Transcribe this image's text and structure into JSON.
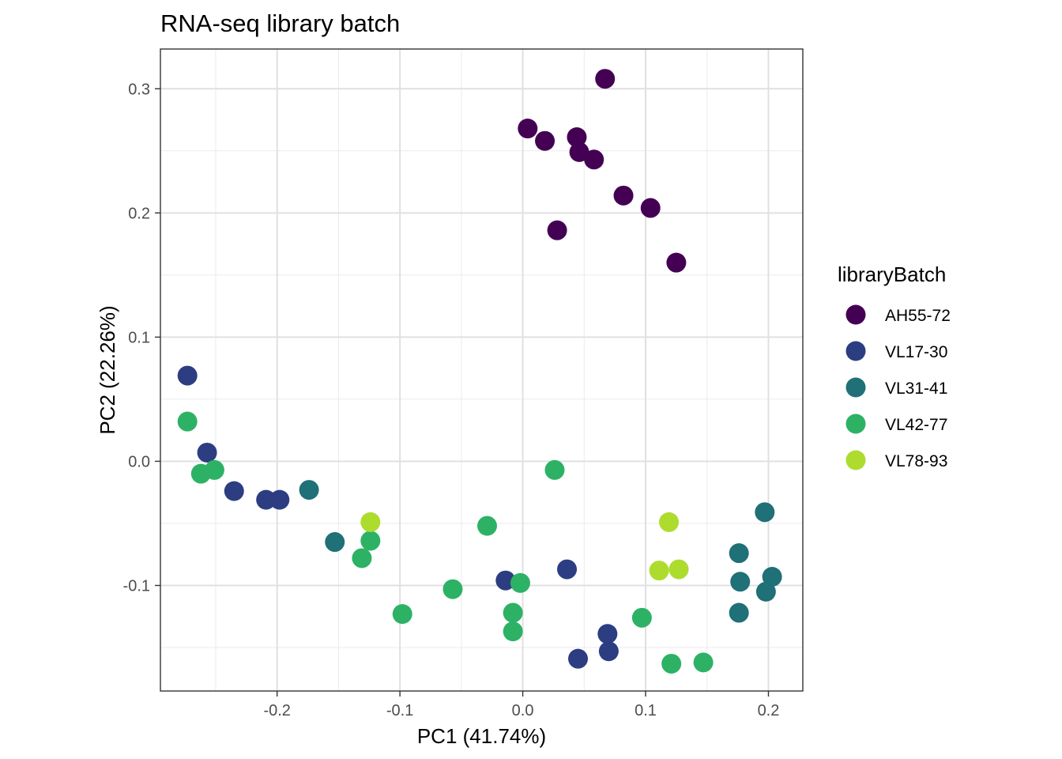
{
  "chart_data": {
    "type": "scatter",
    "title": "RNA-seq library batch",
    "xlabel": "PC1 (41.74%)",
    "ylabel": "PC2 (22.26%)",
    "xlim": [
      -0.295,
      0.228
    ],
    "ylim": [
      -0.185,
      0.332
    ],
    "x_ticks": [
      -0.2,
      -0.1,
      0.0,
      0.1,
      0.2
    ],
    "x_tick_labels": [
      "-0.2",
      "-0.1",
      "0.0",
      "0.1",
      "0.2"
    ],
    "y_ticks": [
      -0.1,
      0.0,
      0.1,
      0.2,
      0.3
    ],
    "y_tick_labels": [
      "-0.1",
      "0.0",
      "0.1",
      "0.2",
      "0.3"
    ],
    "grid": true,
    "legend": {
      "title": "libraryBatch",
      "position": "right"
    },
    "series": [
      {
        "name": "AH55-72",
        "color": "#440154",
        "points": [
          [
            0.067,
            0.308
          ],
          [
            0.004,
            0.268
          ],
          [
            0.018,
            0.258
          ],
          [
            0.044,
            0.261
          ],
          [
            0.046,
            0.249
          ],
          [
            0.058,
            0.243
          ],
          [
            0.082,
            0.214
          ],
          [
            0.104,
            0.204
          ],
          [
            0.028,
            0.186
          ],
          [
            0.125,
            0.16
          ]
        ]
      },
      {
        "name": "VL17-30",
        "color": "#2c3d82",
        "points": [
          [
            -0.273,
            0.069
          ],
          [
            -0.257,
            0.007
          ],
          [
            -0.235,
            -0.024
          ],
          [
            -0.209,
            -0.031
          ],
          [
            -0.198,
            -0.031
          ],
          [
            -0.014,
            -0.096
          ],
          [
            0.036,
            -0.087
          ],
          [
            0.069,
            -0.139
          ],
          [
            0.045,
            -0.159
          ],
          [
            0.07,
            -0.153
          ]
        ]
      },
      {
        "name": "VL31-41",
        "color": "#1f7077",
        "points": [
          [
            -0.174,
            -0.023
          ],
          [
            -0.153,
            -0.065
          ],
          [
            0.197,
            -0.041
          ],
          [
            0.176,
            -0.074
          ],
          [
            0.177,
            -0.097
          ],
          [
            0.203,
            -0.093
          ],
          [
            0.198,
            -0.105
          ],
          [
            0.176,
            -0.122
          ]
        ]
      },
      {
        "name": "VL42-77",
        "color": "#2db265",
        "points": [
          [
            -0.273,
            0.032
          ],
          [
            -0.262,
            -0.01
          ],
          [
            -0.251,
            -0.007
          ],
          [
            -0.124,
            -0.064
          ],
          [
            -0.131,
            -0.078
          ],
          [
            -0.098,
            -0.123
          ],
          [
            -0.057,
            -0.103
          ],
          [
            -0.029,
            -0.052
          ],
          [
            -0.002,
            -0.098
          ],
          [
            -0.008,
            -0.122
          ],
          [
            -0.008,
            -0.137
          ],
          [
            0.026,
            -0.007
          ],
          [
            0.097,
            -0.126
          ],
          [
            0.121,
            -0.163
          ],
          [
            0.147,
            -0.162
          ]
        ]
      },
      {
        "name": "VL78-93",
        "color": "#addc2f",
        "points": [
          [
            -0.124,
            -0.049
          ],
          [
            0.119,
            -0.049
          ],
          [
            0.111,
            -0.088
          ],
          [
            0.127,
            -0.087
          ]
        ]
      }
    ]
  }
}
